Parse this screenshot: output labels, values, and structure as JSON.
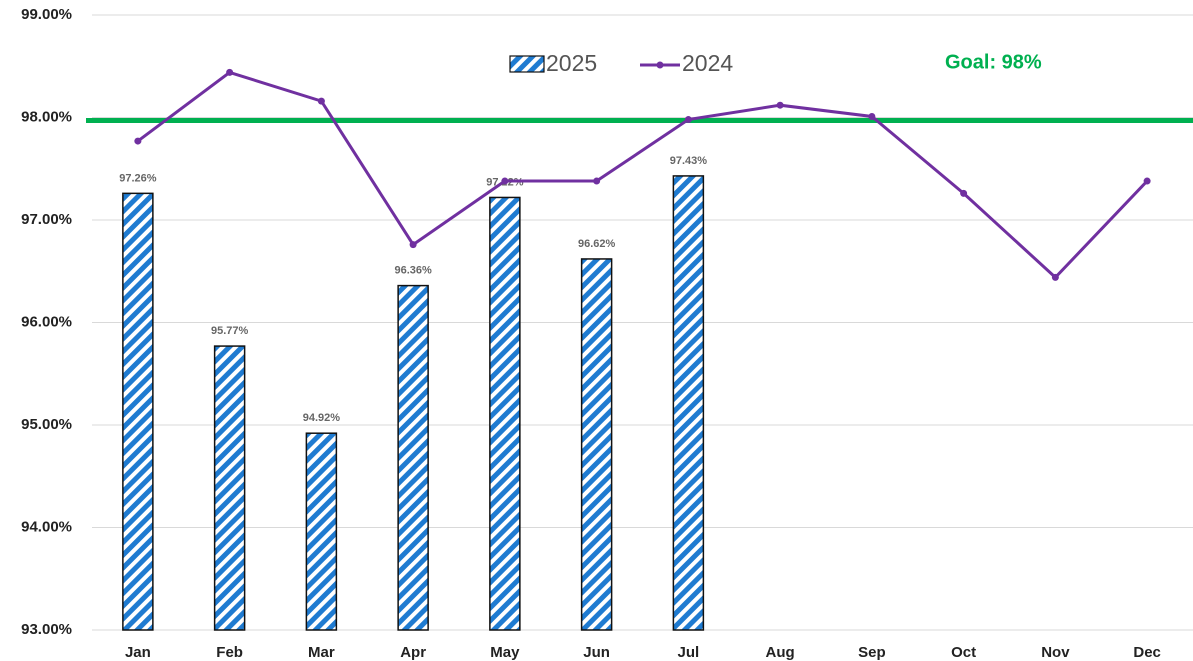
{
  "chart_data": {
    "type": "bar",
    "categories": [
      "Jan",
      "Feb",
      "Mar",
      "Apr",
      "May",
      "Jun",
      "Jul",
      "Aug",
      "Sep",
      "Oct",
      "Nov",
      "Dec"
    ],
    "series": [
      {
        "name": "2025",
        "type": "bar",
        "color": "#1f7bd1",
        "values": [
          97.26,
          95.77,
          94.92,
          96.36,
          97.22,
          96.62,
          97.43,
          null,
          null,
          null,
          null,
          null
        ],
        "value_labels": [
          "97.26%",
          "95.77%",
          "94.92%",
          "96.36%",
          "97.22%",
          "96.62%",
          "97.43%",
          null,
          null,
          null,
          null,
          null
        ]
      },
      {
        "name": "2024",
        "type": "line",
        "color": "#7030a0",
        "values": [
          97.77,
          98.44,
          98.16,
          96.76,
          97.38,
          97.38,
          97.98,
          98.12,
          98.01,
          97.26,
          96.44,
          97.38
        ]
      }
    ],
    "goal": 98,
    "goal_label": "Goal:  98%",
    "goal_color": "#00b050",
    "ylim": [
      93,
      99
    ],
    "yticks": [
      {
        "value": 93,
        "label": "93.00%"
      },
      {
        "value": 94,
        "label": "94.00%"
      },
      {
        "value": 95,
        "label": "95.00%"
      },
      {
        "value": 96,
        "label": "96.00%"
      },
      {
        "value": 97,
        "label": "97.00%"
      },
      {
        "value": 98,
        "label": "98.00%"
      },
      {
        "value": 99,
        "label": "99.00%"
      }
    ],
    "grid": true
  }
}
